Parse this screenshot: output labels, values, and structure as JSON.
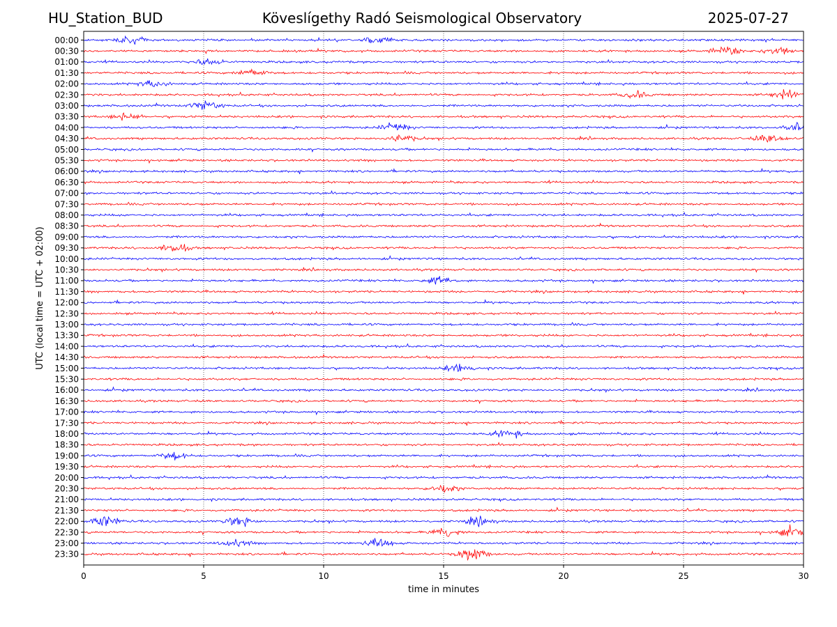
{
  "header": {
    "station": "HU_Station_BUD",
    "observatory": "Köveslígethy Radó Seismological Observatory",
    "date": "2025-07-27"
  },
  "chart_data": {
    "type": "line",
    "title": "Köveslígethy Radó Seismological Observatory",
    "xlabel": "time in minutes",
    "ylabel": "UTC (local time = UTC + 02:00)",
    "xlim": [
      0,
      30
    ],
    "x_ticks": [
      0,
      5,
      10,
      15,
      20,
      25,
      30
    ],
    "grid": "vertical dotted lines at x ticks",
    "row_labels": [
      "00:00",
      "00:30",
      "01:00",
      "01:30",
      "02:00",
      "02:30",
      "03:00",
      "03:30",
      "04:00",
      "04:30",
      "05:00",
      "05:30",
      "06:00",
      "06:30",
      "07:00",
      "07:30",
      "08:00",
      "08:30",
      "09:00",
      "09:30",
      "10:00",
      "10:30",
      "11:00",
      "11:30",
      "12:00",
      "12:30",
      "13:00",
      "13:30",
      "14:00",
      "14:30",
      "15:00",
      "15:30",
      "16:00",
      "16:30",
      "17:00",
      "17:30",
      "18:00",
      "18:30",
      "19:00",
      "19:30",
      "20:00",
      "20:30",
      "21:00",
      "21:30",
      "22:00",
      "22:30",
      "23:00",
      "23:30"
    ],
    "colors": [
      "#0000ff",
      "#ff0000"
    ],
    "events": [
      {
        "row": "00:00",
        "minute": 2.0,
        "amp": 1.6
      },
      {
        "row": "00:00",
        "minute": 12.2,
        "amp": 1.5
      },
      {
        "row": "00:30",
        "minute": 26.8,
        "amp": 1.8
      },
      {
        "row": "00:30",
        "minute": 29.0,
        "amp": 1.9
      },
      {
        "row": "01:00",
        "minute": 5.2,
        "amp": 1.3
      },
      {
        "row": "01:30",
        "minute": 7.0,
        "amp": 1.6
      },
      {
        "row": "02:00",
        "minute": 2.9,
        "amp": 1.5
      },
      {
        "row": "02:30",
        "minute": 23.0,
        "amp": 1.4
      },
      {
        "row": "02:30",
        "minute": 29.3,
        "amp": 1.8
      },
      {
        "row": "03:00",
        "minute": 5.1,
        "amp": 2.0
      },
      {
        "row": "03:30",
        "minute": 1.8,
        "amp": 1.5
      },
      {
        "row": "04:00",
        "minute": 13.0,
        "amp": 1.6
      },
      {
        "row": "04:00",
        "minute": 29.8,
        "amp": 1.7
      },
      {
        "row": "04:30",
        "minute": 13.2,
        "amp": 1.7
      },
      {
        "row": "04:30",
        "minute": 28.6,
        "amp": 1.8
      },
      {
        "row": "09:30",
        "minute": 3.8,
        "amp": 2.0
      },
      {
        "row": "11:00",
        "minute": 14.8,
        "amp": 1.6
      },
      {
        "row": "15:00",
        "minute": 15.7,
        "amp": 1.7
      },
      {
        "row": "18:00",
        "minute": 17.7,
        "amp": 1.8
      },
      {
        "row": "19:00",
        "minute": 3.8,
        "amp": 1.6
      },
      {
        "row": "20:30",
        "minute": 15.0,
        "amp": 1.6
      },
      {
        "row": "22:00",
        "minute": 0.9,
        "amp": 2.4
      },
      {
        "row": "22:00",
        "minute": 6.5,
        "amp": 2.2
      },
      {
        "row": "22:00",
        "minute": 16.5,
        "amp": 1.5
      },
      {
        "row": "22:30",
        "minute": 15.1,
        "amp": 2.2
      },
      {
        "row": "22:30",
        "minute": 29.5,
        "amp": 2.0
      },
      {
        "row": "23:00",
        "minute": 12.3,
        "amp": 1.8
      },
      {
        "row": "23:00",
        "minute": 6.3,
        "amp": 1.5
      },
      {
        "row": "23:30",
        "minute": 16.2,
        "amp": 3.0
      }
    ]
  }
}
